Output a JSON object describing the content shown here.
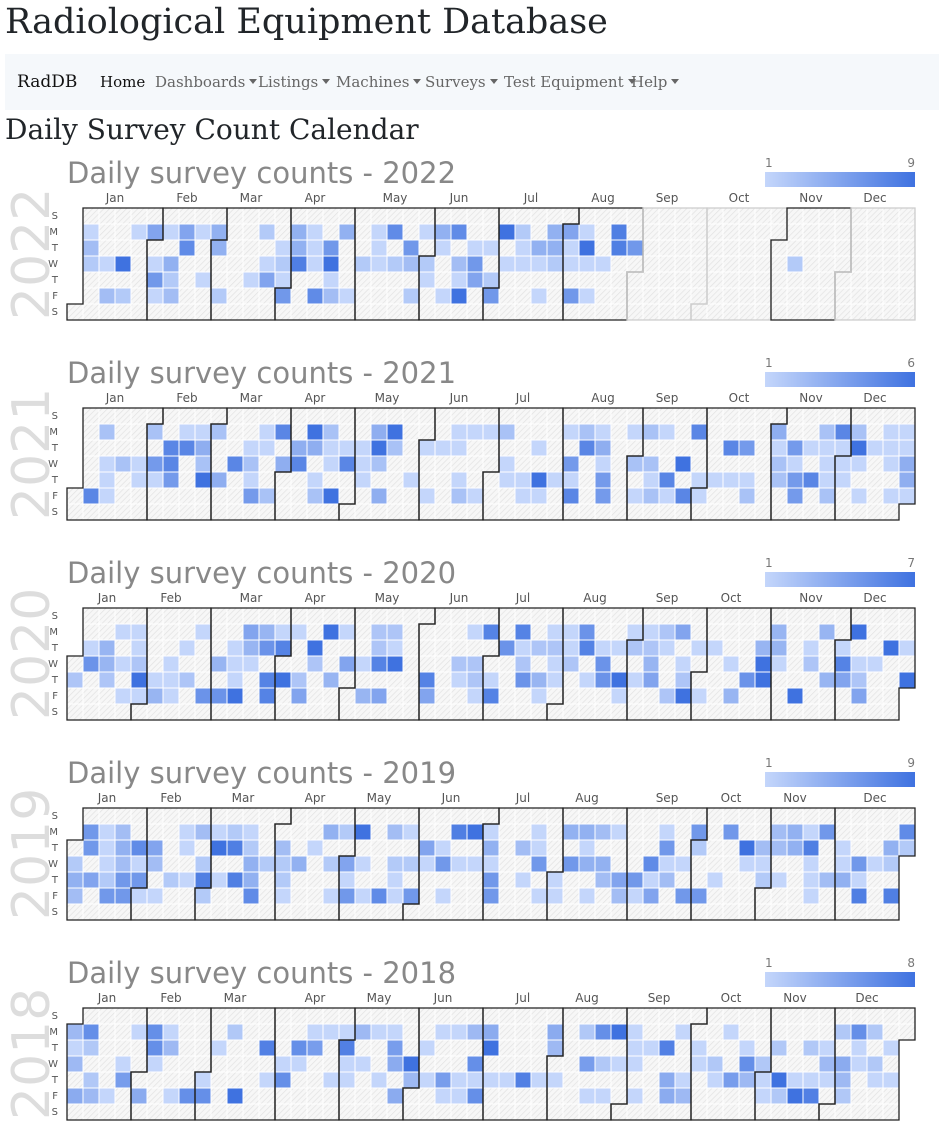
{
  "site_title": "Radiological Equipment Database",
  "nav": {
    "brand": "RadDB",
    "items": [
      {
        "label": "Home",
        "dropdown": false,
        "active": true
      },
      {
        "label": "Dashboards",
        "dropdown": true
      },
      {
        "label": "Listings",
        "dropdown": true
      },
      {
        "label": "Machines",
        "dropdown": true
      },
      {
        "label": "Surveys",
        "dropdown": true
      },
      {
        "label": "Test Equipment",
        "dropdown": true
      },
      {
        "label": "Help",
        "dropdown": true
      }
    ]
  },
  "page_title": "Daily Survey Count Calendar",
  "colors": {
    "empty_cell": "#eeeeee",
    "scale_low": "#c4d6fb",
    "scale_high": "#3f72e0",
    "outline": "#222222",
    "title_text": "#888888",
    "year_watermark": "#dddddd"
  },
  "chart_data": [
    {
      "type": "heatmap",
      "title": "Daily survey counts - 2022",
      "year": 2022,
      "legend_min": "1",
      "legend_max": "9",
      "months": [
        "Jan",
        "Feb",
        "Mar",
        "Apr",
        "May",
        "Jun",
        "Jul",
        "Aug",
        "Sep",
        "Oct",
        "Nov",
        "Dec"
      ],
      "weekday_labels": [
        "S",
        "M",
        "T",
        "W",
        "T",
        "F",
        "S"
      ],
      "year_label": "2022",
      "data_through": "2022-08-31",
      "extra_days": {
        "2022-11-09": 2
      }
    },
    {
      "type": "heatmap",
      "title": "Daily survey counts - 2021",
      "year": 2021,
      "legend_min": "1",
      "legend_max": "6",
      "months": [
        "Jan",
        "Feb",
        "Mar",
        "Apr",
        "May",
        "Jun",
        "Jul",
        "Aug",
        "Sep",
        "Oct",
        "Nov",
        "Dec"
      ],
      "weekday_labels": [
        "S",
        "M",
        "T",
        "W",
        "T",
        "F",
        "S"
      ],
      "year_label": "2021",
      "data_through": "2021-12-31",
      "extra_days": {}
    },
    {
      "type": "heatmap",
      "title": "Daily survey counts - 2020",
      "year": 2020,
      "legend_min": "1",
      "legend_max": "7",
      "months": [
        "Jan",
        "Feb",
        "Mar",
        "Apr",
        "May",
        "Jun",
        "Jul",
        "Aug",
        "Sep",
        "Oct",
        "Nov",
        "Dec"
      ],
      "weekday_labels": [
        "S",
        "M",
        "T",
        "W",
        "T",
        "F",
        "S"
      ],
      "year_label": "2020",
      "data_through": "2020-12-31",
      "extra_days": {}
    },
    {
      "type": "heatmap",
      "title": "Daily survey counts - 2019",
      "year": 2019,
      "legend_min": "1",
      "legend_max": "9",
      "months": [
        "Jan",
        "Feb",
        "Mar",
        "Apr",
        "May",
        "Jun",
        "Jul",
        "Aug",
        "Sep",
        "Oct",
        "Nov",
        "Dec"
      ],
      "weekday_labels": [
        "S",
        "M",
        "T",
        "W",
        "T",
        "F",
        "S"
      ],
      "year_label": "2019",
      "data_through": "2019-12-31",
      "extra_days": {}
    },
    {
      "type": "heatmap",
      "title": "Daily survey counts - 2018",
      "year": 2018,
      "legend_min": "1",
      "legend_max": "8",
      "months": [
        "Jan",
        "Feb",
        "Mar",
        "Apr",
        "May",
        "Jun",
        "Jul",
        "Aug",
        "Sep",
        "Oct",
        "Nov",
        "Dec"
      ],
      "weekday_labels": [
        "S",
        "M",
        "T",
        "W",
        "T",
        "F",
        "S"
      ],
      "year_label": "2018",
      "data_through": "2018-12-31",
      "extra_days": {}
    }
  ]
}
